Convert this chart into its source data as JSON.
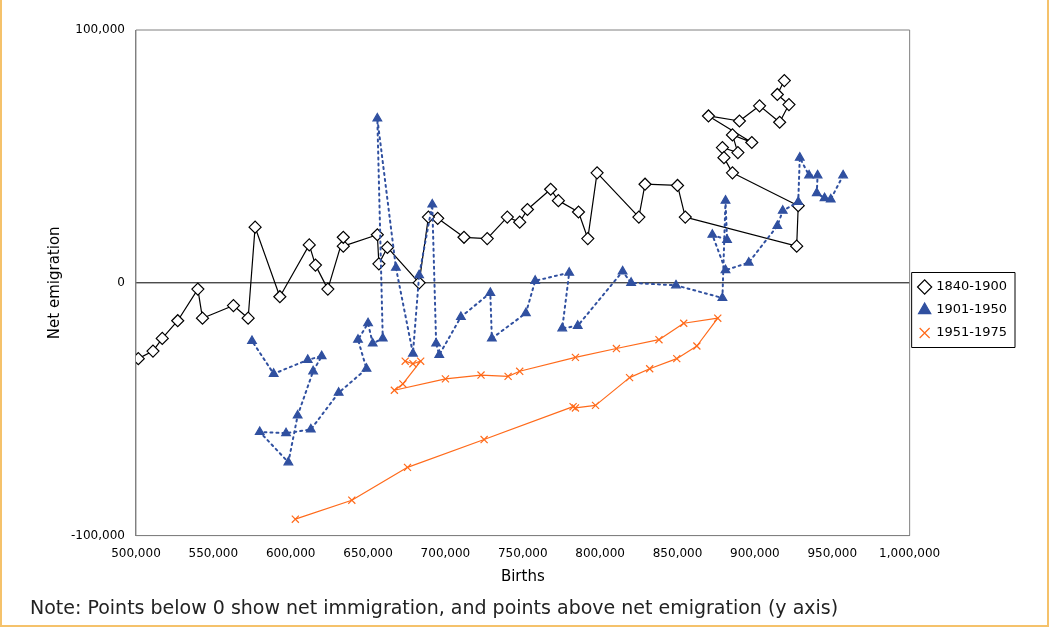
{
  "chart_data": {
    "type": "line",
    "xlabel": "Births",
    "ylabel": "Net emigration",
    "xlim": [
      500000,
      1000000
    ],
    "xticks": [
      {
        "value": 500000,
        "label": "500,000"
      },
      {
        "value": 550000,
        "label": "550,000"
      },
      {
        "value": 600000,
        "label": "600,000"
      },
      {
        "value": 650000,
        "label": "650,000"
      },
      {
        "value": 700000,
        "label": "700,000"
      },
      {
        "value": 750000,
        "label": "750,000"
      },
      {
        "value": 800000,
        "label": "800,000"
      },
      {
        "value": 850000,
        "label": "850,000"
      },
      {
        "value": 900000,
        "label": "900,000"
      },
      {
        "value": 950000,
        "label": "950,000"
      },
      {
        "value": 1000000,
        "label": "1,000,000"
      }
    ],
    "ylim": [
      -100000,
      100000
    ],
    "yticks": [
      {
        "value": -100000,
        "label": "-100,000"
      },
      {
        "value": 0,
        "label": "0"
      },
      {
        "value": 100000,
        "label": "100,000"
      }
    ],
    "grid": false,
    "legend": "right",
    "ref_lines": [
      {
        "axis": "y",
        "value": 0,
        "color": "#000000"
      }
    ],
    "annotations": [
      "Note: Points below 0 show net immigration, and points above net emigration (y axis)"
    ],
    "series": [
      {
        "name": "1840-1900",
        "color": "#000000",
        "marker": "diamond",
        "line_style": "solid",
        "x": [
          919000,
          914500,
          922000,
          916000,
          903000,
          890000,
          870000,
          898000,
          885500,
          889000,
          879000,
          880000,
          885500,
          928000,
          927000,
          855000,
          850000,
          829000,
          825000,
          798000,
          792000,
          786000,
          773000,
          768000,
          753000,
          748000,
          740000,
          727000,
          712000,
          695000,
          689000,
          683000,
          662500,
          657000,
          656000,
          634000,
          634000,
          624000,
          616000,
          612000,
          593000,
          577000,
          572500,
          563000,
          543000,
          540000,
          527000,
          517000,
          511000,
          501500
        ],
        "values": [
          80000,
          74500,
          70500,
          63500,
          70000,
          64000,
          66000,
          55500,
          58500,
          51500,
          53500,
          49500,
          43500,
          30500,
          14500,
          26000,
          38500,
          39000,
          26000,
          43500,
          17500,
          28000,
          32500,
          37000,
          29000,
          24000,
          26000,
          17500,
          18000,
          25500,
          26000,
          0,
          14000,
          7500,
          19000,
          14500,
          18000,
          -2500,
          7000,
          15000,
          -5500,
          22000,
          -14000,
          -9000,
          -14000,
          -2500,
          -15000,
          -22000,
          -27000,
          -30000
        ]
      },
      {
        "name": "1901-1950",
        "color": "#3050a0",
        "marker": "triangle",
        "line_style": "dotted",
        "x": [
          957000,
          949000,
          945000,
          940000,
          940500,
          935000,
          929000,
          928000,
          918000,
          914500,
          896000,
          881000,
          872500,
          882000,
          881000,
          879000,
          849000,
          820000,
          814500,
          785500,
          775500,
          780000,
          758000,
          752000,
          730000,
          729000,
          710000,
          696000,
          694000,
          691500,
          683000,
          679000,
          668000,
          656000,
          659500,
          653000,
          650000,
          643500,
          649000,
          631000,
          613000,
          597000,
          580000,
          598500,
          604500,
          614500,
          620000,
          611000,
          589000,
          575000
        ],
        "values": [
          42500,
          33000,
          33500,
          35500,
          42500,
          42500,
          49500,
          32000,
          28500,
          22500,
          8000,
          5000,
          19000,
          17000,
          32500,
          -6000,
          -1000,
          0,
          4500,
          -17000,
          -18000,
          4000,
          800,
          -12000,
          -22000,
          -4000,
          -13500,
          -28500,
          -24000,
          31000,
          3000,
          -28000,
          6000,
          65000,
          -22000,
          -24000,
          -16000,
          -22500,
          -34000,
          -43500,
          -58000,
          -59500,
          -59000,
          -71000,
          -52500,
          -35000,
          -29000,
          -30500,
          -36000,
          -23000
        ]
      },
      {
        "name": "1951-1975",
        "color": "#ff6a1a",
        "marker": "cross",
        "line_style": "solid",
        "x": [
          603000,
          639500,
          675500,
          725000,
          782500,
          784000,
          797000,
          819000,
          832000,
          849500,
          862500,
          876000,
          854000,
          838000,
          810500,
          784000,
          748000,
          740500,
          723000,
          700000,
          667000,
          672500,
          684000,
          679000,
          674000
        ],
        "values": [
          -93500,
          -86000,
          -73000,
          -62000,
          -49000,
          -49500,
          -48500,
          -37500,
          -34000,
          -30000,
          -25000,
          -14000,
          -16000,
          -22500,
          -26000,
          -29500,
          -35000,
          -37000,
          -36500,
          -38000,
          -42500,
          -40000,
          -31000,
          -32000,
          -31000
        ]
      }
    ]
  }
}
